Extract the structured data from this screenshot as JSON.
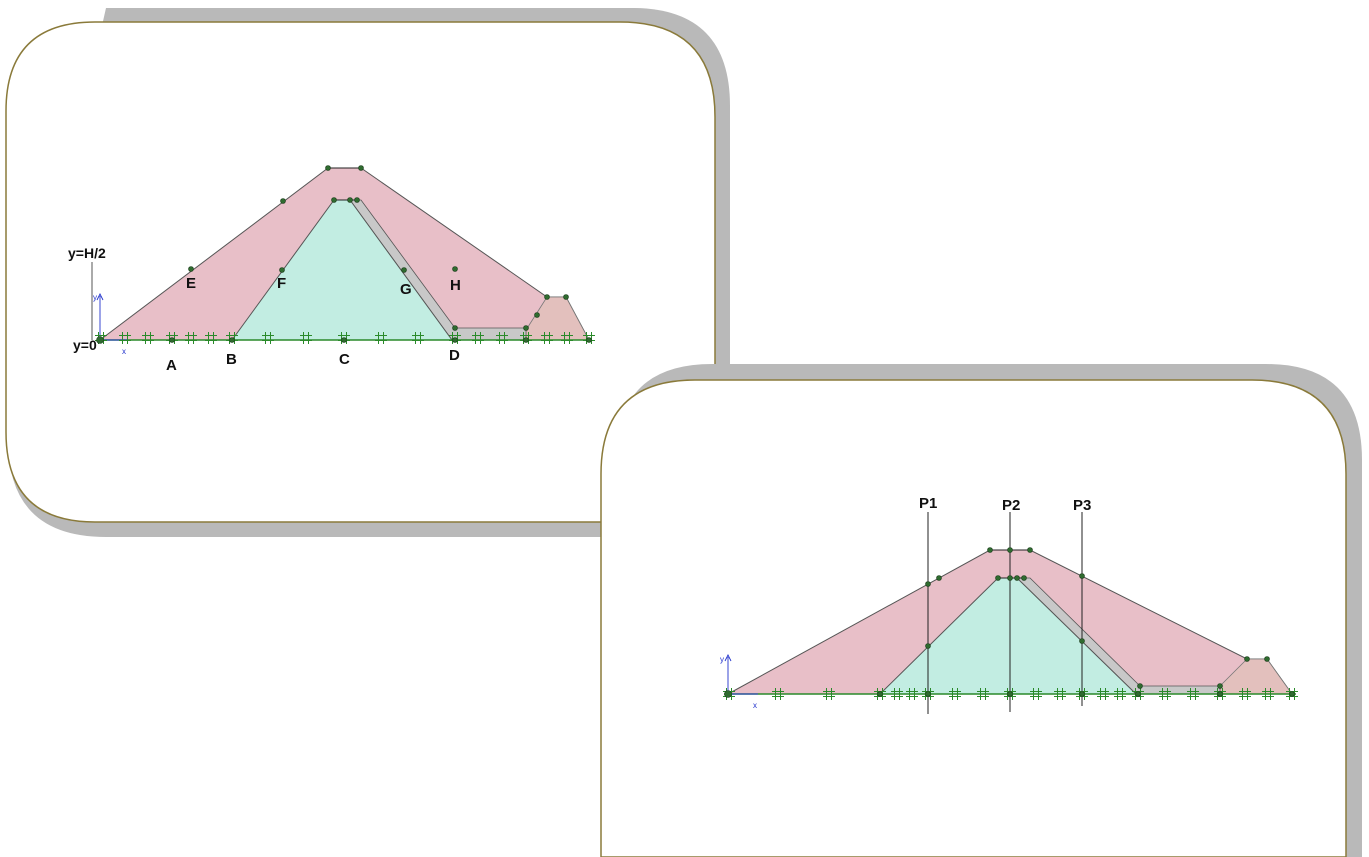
{
  "colors": {
    "shell": "#e8bfc8",
    "core": "#c2ede2",
    "filter": "#c8c8c8",
    "toe": "#e3c0bd",
    "ground_line": "#2a8a2a",
    "node": "#2f6b2f",
    "frame_border": "#8a7a3a",
    "frame_shadow": "#b9b9b9",
    "axis": "#2233cc"
  },
  "icons": {
    "node": "filled-circle",
    "mesh_marker": "hash-cross",
    "axis": "arrow"
  },
  "panel_left": {
    "point_labels": [
      "A",
      "B",
      "C",
      "D",
      "E",
      "F",
      "G",
      "H"
    ],
    "level_labels": [
      "y=H/2",
      "y=0"
    ],
    "axis_labels": [
      "y",
      "x"
    ]
  },
  "panel_right": {
    "section_labels": [
      "P1",
      "P2",
      "P3"
    ],
    "axis_labels": [
      "y",
      "x"
    ]
  }
}
